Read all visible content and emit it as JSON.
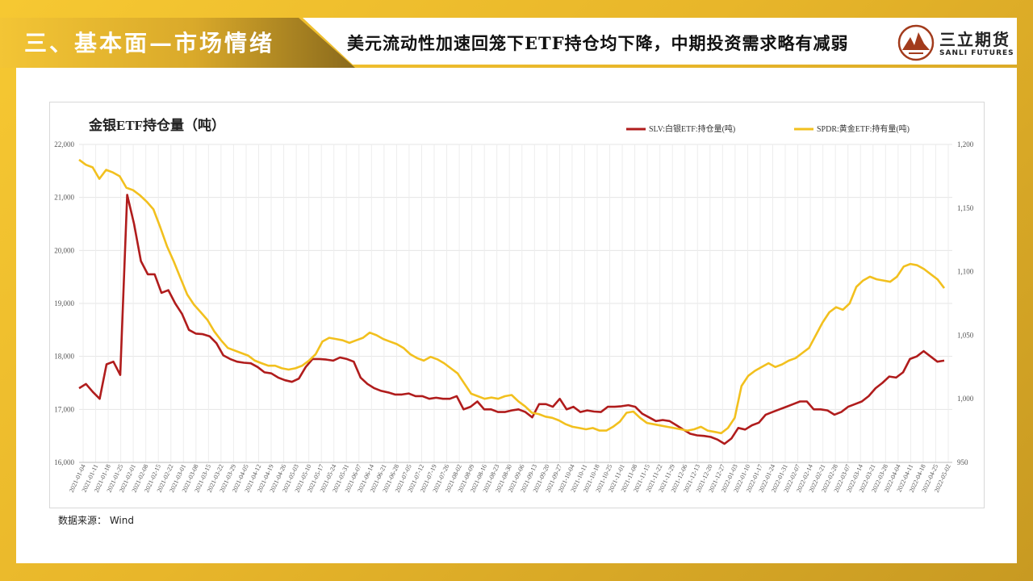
{
  "header": {
    "section_title": "三、基本面—市场情绪",
    "subtitle": "美元流动性加速回笼下ETF持仓均下降，中期投资需求略有减弱",
    "logo_cn": "三立期货",
    "logo_en": "SANLI FUTURES"
  },
  "footer": {
    "source": "数据来源： Wind"
  },
  "chart_data": {
    "type": "line",
    "title": "金银ETF持仓量（吨）",
    "grid": true,
    "legend_position": "top-right",
    "y_left": {
      "min": 16000,
      "max": 22000,
      "ticks": [
        "16,000",
        "17,000",
        "18,000",
        "19,000",
        "20,000",
        "21,000",
        "22,000"
      ]
    },
    "y_right": {
      "min": 950,
      "max": 1200,
      "ticks": [
        "950",
        "1,000",
        "1,050",
        "1,100",
        "1,150",
        "1,200"
      ]
    },
    "x_ticks": [
      "2021-01-04",
      "2021-01-11",
      "2021-01-18",
      "2021-01-25",
      "2021-02-01",
      "2021-02-08",
      "2021-02-15",
      "2021-02-22",
      "2021-03-01",
      "2021-03-08",
      "2021-03-15",
      "2021-03-22",
      "2021-03-29",
      "2021-04-05",
      "2021-04-12",
      "2021-04-19",
      "2021-04-26",
      "2021-05-03",
      "2021-05-10",
      "2021-05-17",
      "2021-05-24",
      "2021-05-31",
      "2021-06-07",
      "2021-06-14",
      "2021-06-21",
      "2021-06-28",
      "2021-07-05",
      "2021-07-12",
      "2021-07-19",
      "2021-07-26",
      "2021-08-02",
      "2021-08-09",
      "2021-08-16",
      "2021-08-23",
      "2021-08-30",
      "2021-09-06",
      "2021-09-13",
      "2021-09-20",
      "2021-09-27",
      "2021-10-04",
      "2021-10-11",
      "2021-10-18",
      "2021-10-25",
      "2021-11-01",
      "2021-11-08",
      "2021-11-15",
      "2021-11-22",
      "2021-11-29",
      "2021-12-06",
      "2021-12-13",
      "2021-12-20",
      "2021-12-27",
      "2022-01-03",
      "2022-01-10",
      "2022-01-17",
      "2022-01-24",
      "2022-01-31",
      "2022-02-07",
      "2022-02-14",
      "2022-02-21",
      "2022-02-28",
      "2022-03-07",
      "2022-03-14",
      "2022-03-21",
      "2022-03-28",
      "2022-04-04",
      "2022-04-11",
      "2022-04-18",
      "2022-04-25",
      "2022-05-02"
    ],
    "series": [
      {
        "name": "SLV:白银ETF:持仓量(吨)",
        "axis": "left",
        "color": "#b01c1c",
        "values": [
          17400,
          17480,
          17330,
          17200,
          17850,
          17900,
          17650,
          21050,
          20500,
          19800,
          19550,
          19550,
          19200,
          19250,
          19000,
          18800,
          18500,
          18430,
          18420,
          18380,
          18250,
          18020,
          17950,
          17900,
          17880,
          17870,
          17800,
          17700,
          17680,
          17600,
          17550,
          17520,
          17580,
          17800,
          17950,
          17950,
          17940,
          17920,
          17980,
          17950,
          17900,
          17600,
          17480,
          17400,
          17350,
          17320,
          17280,
          17280,
          17300,
          17250,
          17250,
          17200,
          17220,
          17200,
          17200,
          17250,
          17000,
          17050,
          17150,
          17000,
          17000,
          16950,
          16950,
          16980,
          17000,
          16950,
          16850,
          17100,
          17100,
          17050,
          17200,
          17000,
          17050,
          16950,
          16980,
          16960,
          16950,
          17050,
          17050,
          17060,
          17080,
          17050,
          16920,
          16850,
          16780,
          16800,
          16780,
          16700,
          16620,
          16540,
          16510,
          16500,
          16480,
          16430,
          16350,
          16450,
          16650,
          16620,
          16700,
          16750,
          16900,
          16950,
          17000,
          17050,
          17100,
          17150,
          17150,
          17000,
          17000,
          16980,
          16900,
          16950,
          17050,
          17100,
          17150,
          17250,
          17400,
          17500,
          17620,
          17600,
          17700,
          17950,
          18000,
          18100,
          18000,
          17900,
          17920
        ]
      },
      {
        "name": "SPDR:黄金ETF:持有量(吨)",
        "axis": "right",
        "color": "#f2c01e",
        "values": [
          1188,
          1184,
          1182,
          1173,
          1180,
          1178,
          1175,
          1166,
          1164,
          1160,
          1155,
          1149,
          1135,
          1120,
          1108,
          1095,
          1082,
          1074,
          1068,
          1062,
          1053,
          1046,
          1040,
          1038,
          1036,
          1034,
          1030,
          1028,
          1026,
          1026,
          1024,
          1023,
          1024,
          1026,
          1030,
          1035,
          1045,
          1048,
          1047,
          1046,
          1044,
          1046,
          1048,
          1052,
          1050,
          1047,
          1045,
          1043,
          1040,
          1035,
          1032,
          1030,
          1033,
          1031,
          1028,
          1024,
          1020,
          1012,
          1004,
          1002,
          1000,
          1001,
          1000,
          1002,
          1003,
          998,
          994,
          989,
          988,
          986,
          985,
          983,
          980,
          978,
          977,
          976,
          977,
          975,
          975,
          978,
          982,
          989,
          990,
          985,
          981,
          980,
          979,
          978,
          977,
          976,
          975,
          976,
          978,
          975,
          974,
          973,
          977,
          985,
          1010,
          1018,
          1022,
          1025,
          1028,
          1025,
          1027,
          1030,
          1032,
          1036,
          1040,
          1050,
          1060,
          1068,
          1072,
          1070,
          1075,
          1088,
          1093,
          1096,
          1094,
          1093,
          1092,
          1096,
          1104,
          1106,
          1105,
          1102,
          1098,
          1094,
          1087
        ]
      }
    ]
  }
}
